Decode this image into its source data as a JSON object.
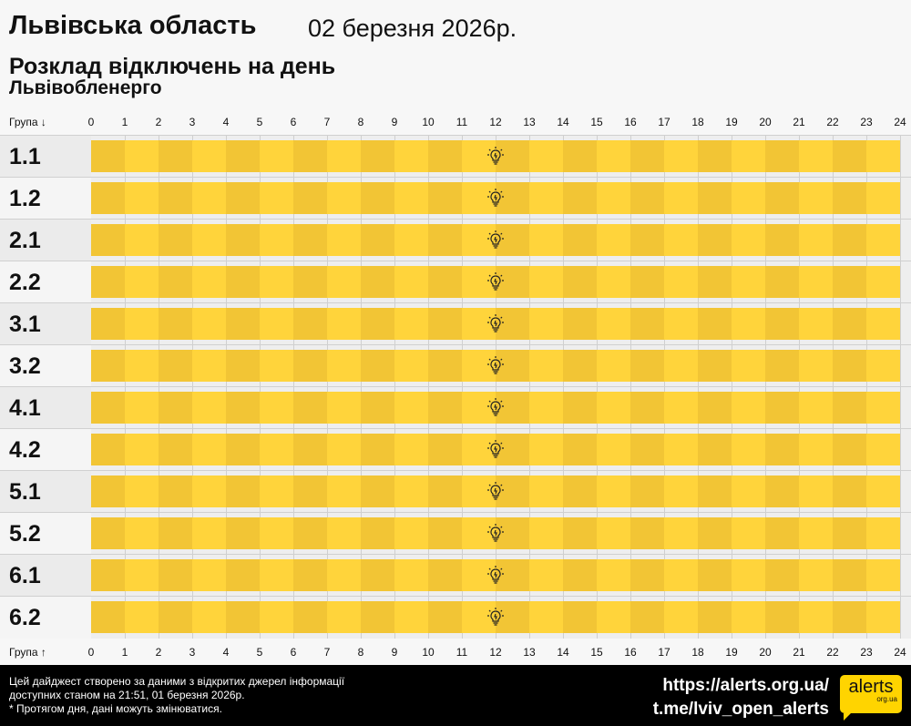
{
  "header": {
    "region": "Львівська область",
    "date": "02 березня 2026р.",
    "title": "Розклад відключень на день",
    "provider": "Львівобленерго"
  },
  "axis": {
    "top_label": "Група ↓",
    "bottom_label": "Група ↑",
    "hours": [
      "0",
      "1",
      "2",
      "3",
      "4",
      "5",
      "6",
      "7",
      "8",
      "9",
      "10",
      "11",
      "12",
      "13",
      "14",
      "15",
      "16",
      "17",
      "18",
      "19",
      "20",
      "21",
      "22",
      "23",
      "24"
    ]
  },
  "groups": [
    "1.1",
    "1.2",
    "2.1",
    "2.2",
    "3.1",
    "3.2",
    "4.1",
    "4.2",
    "5.1",
    "5.2",
    "6.1",
    "6.2"
  ],
  "status": "power-on all day",
  "icon": "lightbulb-icon",
  "colors": {
    "on_dark": "#f2c535",
    "on_light": "#ffd43b",
    "footer": "#000000",
    "brand": "#ffd400"
  },
  "footer": {
    "note1": "Цей дайджест створено за даними з відкритих джерел інформації",
    "note2": "доступних станом на 21:51, 01 березня 2026р.",
    "note3": "* Протягом дня, дані можуть змінюватися.",
    "url": "https://alerts.org.ua/",
    "telegram": "t.me/lviv_open_alerts",
    "logo": "alerts",
    "logo_sub": "org.ua"
  }
}
